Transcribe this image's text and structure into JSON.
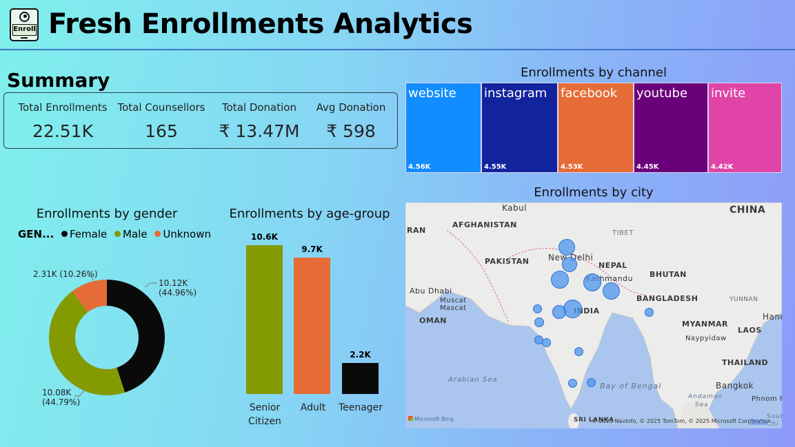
{
  "header": {
    "title": "Fresh Enrollments Analytics",
    "logo_text": "Enroll"
  },
  "summary": {
    "heading": "Summary",
    "kpis": [
      {
        "label": "Total Enrollments",
        "value": "22.51K"
      },
      {
        "label": "Total Counsellors",
        "value": "165"
      },
      {
        "label": "Total Donation",
        "value": "₹ 13.47M"
      },
      {
        "label": "Avg Donation",
        "value": "₹ 598"
      }
    ]
  },
  "channel": {
    "title": "Enrollments by channel",
    "tiles": [
      {
        "label": "website",
        "value": "4.56K",
        "color": "#118dff"
      },
      {
        "label": "instagram",
        "value": "4.55K",
        "color": "#12239e"
      },
      {
        "label": "facebook",
        "value": "4.53K",
        "color": "#e66c37"
      },
      {
        "label": "youtube",
        "value": "4.45K",
        "color": "#6b007b"
      },
      {
        "label": "invite",
        "value": "4.42K",
        "color": "#e044a7"
      }
    ]
  },
  "gender": {
    "title": "Enrollments by gender",
    "legend_title": "GEN...",
    "legend": [
      {
        "label": "Female",
        "color": "#0a0a0a"
      },
      {
        "label": "Male",
        "color": "#839a00"
      },
      {
        "label": "Unknown",
        "color": "#e66c37"
      }
    ],
    "slice_labels": {
      "female": [
        "10.12K",
        "(44.96%)"
      ],
      "male": [
        "10.08K",
        "(44.79%)"
      ],
      "unknown": "2.31K (10.26%)"
    }
  },
  "age": {
    "title": "Enrollments by age-group",
    "bars": [
      {
        "category": "Senior Citizen",
        "label": "10.6K",
        "value": 10.6,
        "color": "#839a00"
      },
      {
        "category": "Adult",
        "label": "9.7K",
        "value": 9.7,
        "color": "#e66c37"
      },
      {
        "category": "Teenager",
        "label": "2.2K",
        "value": 2.2,
        "color": "#0a0a0a"
      }
    ]
  },
  "city": {
    "title": "Enrollments by city",
    "countries": {
      "china": "CHINA",
      "afghanistan": "AFGHANISTAN",
      "pakistan": "PAKISTAN",
      "nepal": "NEPAL",
      "bhutan": "BHUTAN",
      "bangladesh": "BANGLADESH",
      "india": "INDIA",
      "myanmar": "MYANMAR",
      "laos": "LAOS",
      "thailand": "THAILAND",
      "oman": "OMAN",
      "sri": "SRI LANKA",
      "iran": "RAN"
    },
    "places": {
      "kabul": "Kabul",
      "newdelhi": "New Delhi",
      "kathmandu": "Kathmandu",
      "tibet": "TIBET",
      "abudhabi": "Abu Dhabi",
      "muscat1": "Muscat",
      "muscat2": "Mascat",
      "yunnan": "YUNNAN",
      "naypyidaw": "Naypyidaw",
      "bangkok": "Bangkok",
      "hanoi": "Hano",
      "phnompenh": "Phnom Pen",
      "andaman": "Andaman",
      "andaman2": "Sea",
      "south": "Sout",
      "south2": "Chi"
    },
    "water": {
      "arabian": "Arabian Sea",
      "bengal": "Bay of Bengal"
    },
    "attribution": "© 2025 NavInfo, © 2025 TomTom, © 2025 Microsoft Corporation",
    "terms": "Terms",
    "bing": "Microsoft Bing"
  }
}
